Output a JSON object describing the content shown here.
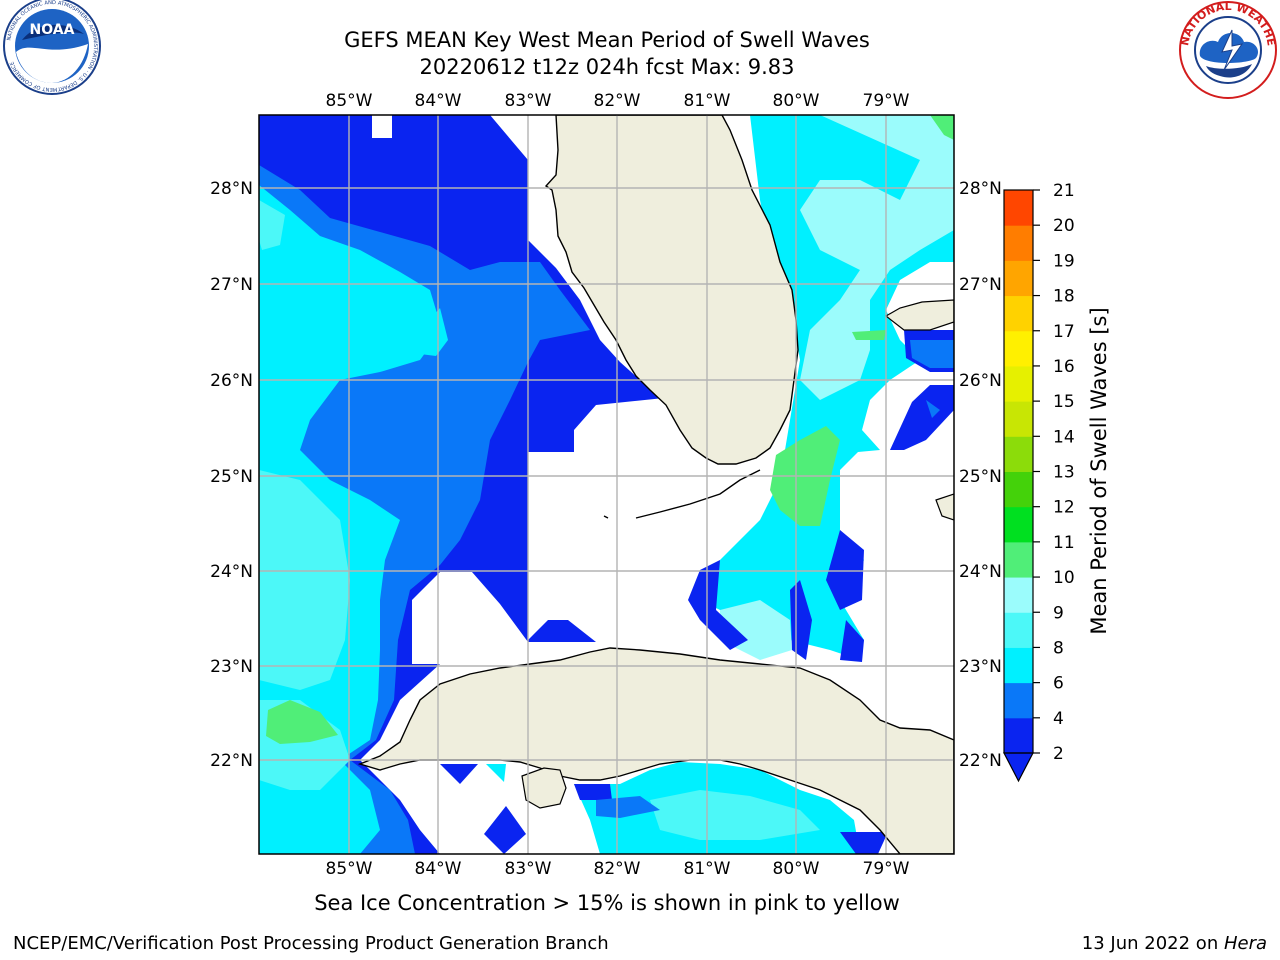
{
  "header": {
    "title_line1": "GEFS MEAN Key West Mean Period of Swell Waves",
    "title_line2": "20220612 t12z 024h fcst   Max: 9.83"
  },
  "logos": {
    "left": {
      "name": "NOAA",
      "ring_text": "NATIONAL OCEANIC AND ATMOSPHERIC ADMINISTRATION · U.S. DEPARTMENT OF COMMERCE"
    },
    "right": {
      "name": "NATIONAL WEATHER SERVICE"
    }
  },
  "map": {
    "lon_labels": [
      "85°W",
      "84°W",
      "83°W",
      "82°W",
      "81°W",
      "80°W",
      "79°W"
    ],
    "lat_labels": [
      "28°N",
      "27°N",
      "26°N",
      "25°N",
      "24°N",
      "23°N",
      "22°N"
    ],
    "colors": {
      "land": "#efeedd",
      "ocean_none": "#ffffff",
      "grid": "#b4b4b4",
      "coast": "#000000"
    }
  },
  "colorbar": {
    "label": "Mean Period of Swell Waves [s]",
    "ticks": [
      "2",
      "4",
      "6",
      "8",
      "9",
      "10",
      "11",
      "12",
      "13",
      "14",
      "15",
      "16",
      "17",
      "18",
      "19",
      "20",
      "21"
    ],
    "colors": [
      "#0a24f0",
      "#0a78f8",
      "#00f0ff",
      "#4cf8f8",
      "#9bfcfc",
      "#50ee78",
      "#00e020",
      "#44d20a",
      "#8cdc0a",
      "#c8e604",
      "#e6f000",
      "#fff000",
      "#ffd200",
      "#ffa500",
      "#ff7d00",
      "#ff4600",
      "#ff0000"
    ]
  },
  "footer": {
    "ice_note": "Sea Ice Concentration > 15% is shown in pink to yellow",
    "left": "NCEP/EMC/Verification Post Processing Product Generation Branch",
    "right_prefix": "13 Jun 2022 on ",
    "right_host": "Hera"
  }
}
